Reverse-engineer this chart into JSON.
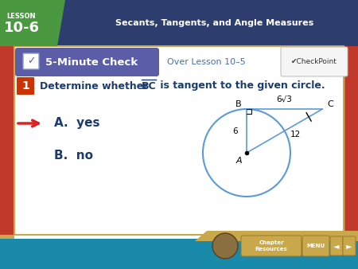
{
  "bg_outer": "#c0392b",
  "bg_header_dark": "#2d3e6e",
  "bg_main": "#ffffff",
  "banner_bg": "#5b5ea6",
  "banner_text_color": "#ffffff",
  "over_lesson_color": "#5b7faa",
  "checkpoint_bg": "#f0f0f0",
  "header_text": "Secants, Tangents, and Angle Measures",
  "lesson_label": "LESSON",
  "lesson_number": "10-6",
  "lesson_box_green": "#4a9940",
  "banner_text": "5-Minute Check",
  "over_lesson": "Over Lesson 10–5",
  "question_number": "1",
  "answer_a_text": "A.  yes",
  "answer_b_text": "B.  no",
  "arrow_color": "#dd2222",
  "circle_color": "#5b9bd5",
  "line_color": "#5b9bd5",
  "dark_blue": "#1a3c6e",
  "qnum_badge_color": "#cc3300",
  "footer_teal": "#2a9db5",
  "footer_gold": "#c9a84c",
  "footer_dark_blue": "#1a5580",
  "label_6sqrt3": "6×√3",
  "label_6": "6",
  "label_12": "12"
}
